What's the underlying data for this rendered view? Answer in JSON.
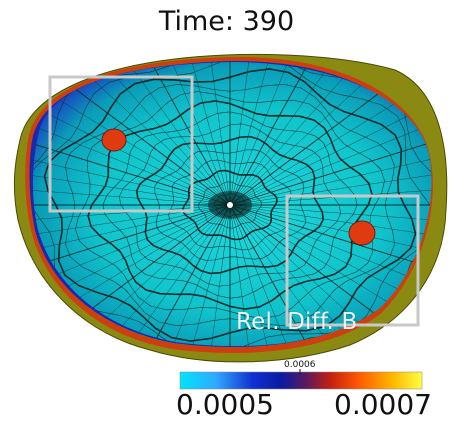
{
  "title": "Time: 390",
  "overlay_label": "Rel. Diff. B",
  "colorbar": {
    "min_label": "0.0005",
    "mid_label": "0.0006",
    "max_label": "0.0007",
    "stops": [
      "#00e5ff",
      "#2fa8ff",
      "#1030d0",
      "#0a1aa0",
      "#5a1a60",
      "#c22010",
      "#ff5a00",
      "#ffb800",
      "#ffff40"
    ]
  },
  "colors": {
    "surface": "#10c8d0",
    "rim": "#8a8a10",
    "hotspot": "#e03a10",
    "selection_box": "#c8c8c8"
  }
}
